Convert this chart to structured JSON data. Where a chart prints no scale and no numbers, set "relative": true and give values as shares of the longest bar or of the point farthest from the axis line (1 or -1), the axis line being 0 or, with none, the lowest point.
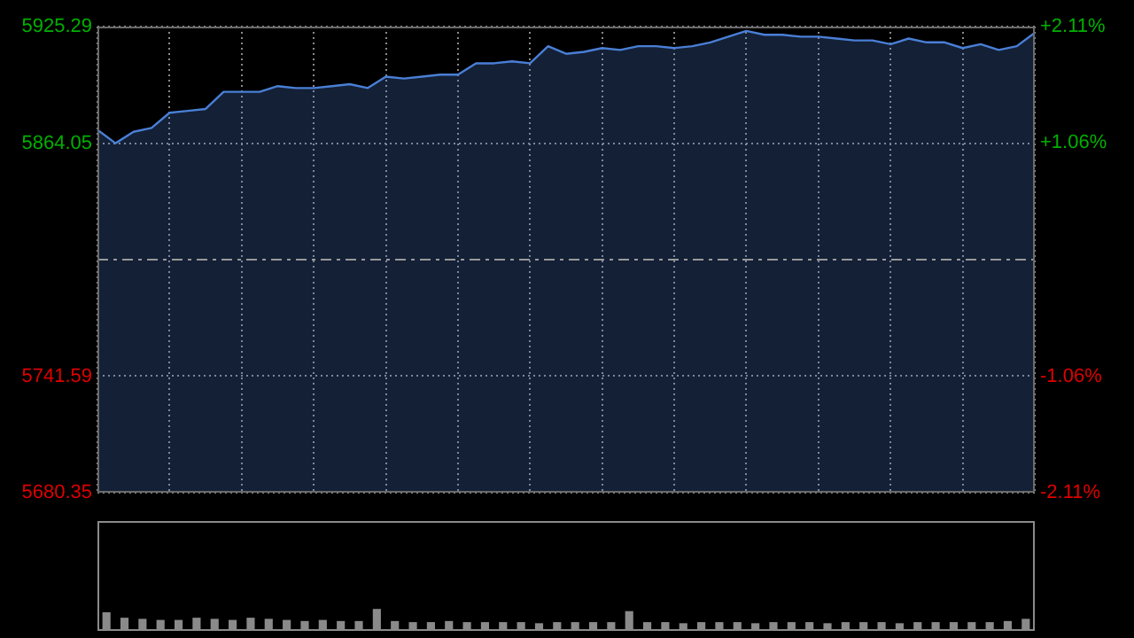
{
  "chart_data": [
    {
      "type": "area",
      "categories": [
        null,
        null,
        null,
        null,
        null,
        null,
        null,
        null,
        null,
        null,
        null,
        null,
        null,
        null,
        null,
        null,
        null,
        null,
        null,
        null,
        null,
        null,
        null,
        null,
        null,
        null,
        null,
        null,
        null,
        null,
        null,
        null,
        null,
        null,
        null,
        null,
        null,
        null,
        null,
        null,
        null,
        null,
        null,
        null,
        null,
        null,
        null,
        null,
        null,
        null,
        null,
        null,
        null
      ],
      "series": [
        {
          "color": "#4a7fd6",
          "values": [
            5871,
            5864,
            5870,
            5872,
            5880,
            5881,
            5882,
            5891,
            5891,
            5891,
            5894,
            5893,
            5893,
            5894,
            5895,
            5893,
            5899,
            5898,
            5899,
            5900,
            5900,
            5906,
            5906,
            5907,
            5906,
            5915,
            5911,
            5912,
            5914,
            5913,
            5915,
            5915,
            5914,
            5915,
            5917,
            5920,
            5923,
            5921,
            5921,
            5920,
            5920,
            5919,
            5918,
            5918,
            5916,
            5919,
            5917,
            5917,
            5914,
            5916,
            5913,
            5915,
            5922
          ]
        }
      ],
      "ylim": [
        5680.35,
        5925.29
      ],
      "yticks": [
        5680.35,
        5741.59,
        5864.05,
        5925.29
      ],
      "y2lim": [
        -2.11,
        2.11
      ],
      "y2ticks": [
        {
          "value": -2.11,
          "label": "-2.11%"
        },
        {
          "value": -1.06,
          "label": "-1.06%"
        },
        {
          "value": 1.06,
          "label": "+1.06%"
        },
        {
          "value": 2.11,
          "label": "+2.11%"
        }
      ],
      "ref_lines": [
        {
          "axis": "y",
          "value": 5802.82,
          "color": "#9a9a9a",
          "line_style": "dashed"
        }
      ],
      "grid": true,
      "tick_labels": "y",
      "marker": "none"
    },
    {
      "type": "bar",
      "relative": true,
      "categories": [
        null,
        null,
        null,
        null,
        null,
        null,
        null,
        null,
        null,
        null,
        null,
        null,
        null,
        null,
        null,
        null,
        null,
        null,
        null,
        null,
        null,
        null,
        null,
        null,
        null,
        null,
        null,
        null,
        null,
        null,
        null,
        null,
        null,
        null,
        null,
        null,
        null,
        null,
        null,
        null,
        null,
        null,
        null,
        null,
        null,
        null,
        null,
        null,
        null,
        null,
        null,
        null
      ],
      "values": [
        0.85,
        0.6,
        0.55,
        0.5,
        0.5,
        0.6,
        0.55,
        0.5,
        0.6,
        0.55,
        0.5,
        0.45,
        0.5,
        0.45,
        0.45,
        1,
        0.45,
        0.4,
        0.4,
        0.45,
        0.4,
        0.4,
        0.4,
        0.4,
        0.35,
        0.4,
        0.4,
        0.4,
        0.4,
        0.9,
        0.4,
        0.4,
        0.35,
        0.4,
        0.4,
        0.4,
        0.35,
        0.4,
        0.4,
        0.4,
        0.35,
        0.4,
        0.4,
        0.4,
        0.35,
        0.4,
        0.4,
        0.4,
        0.4,
        0.4,
        0.45,
        0.55
      ],
      "color": "#8a8a8a"
    }
  ]
}
